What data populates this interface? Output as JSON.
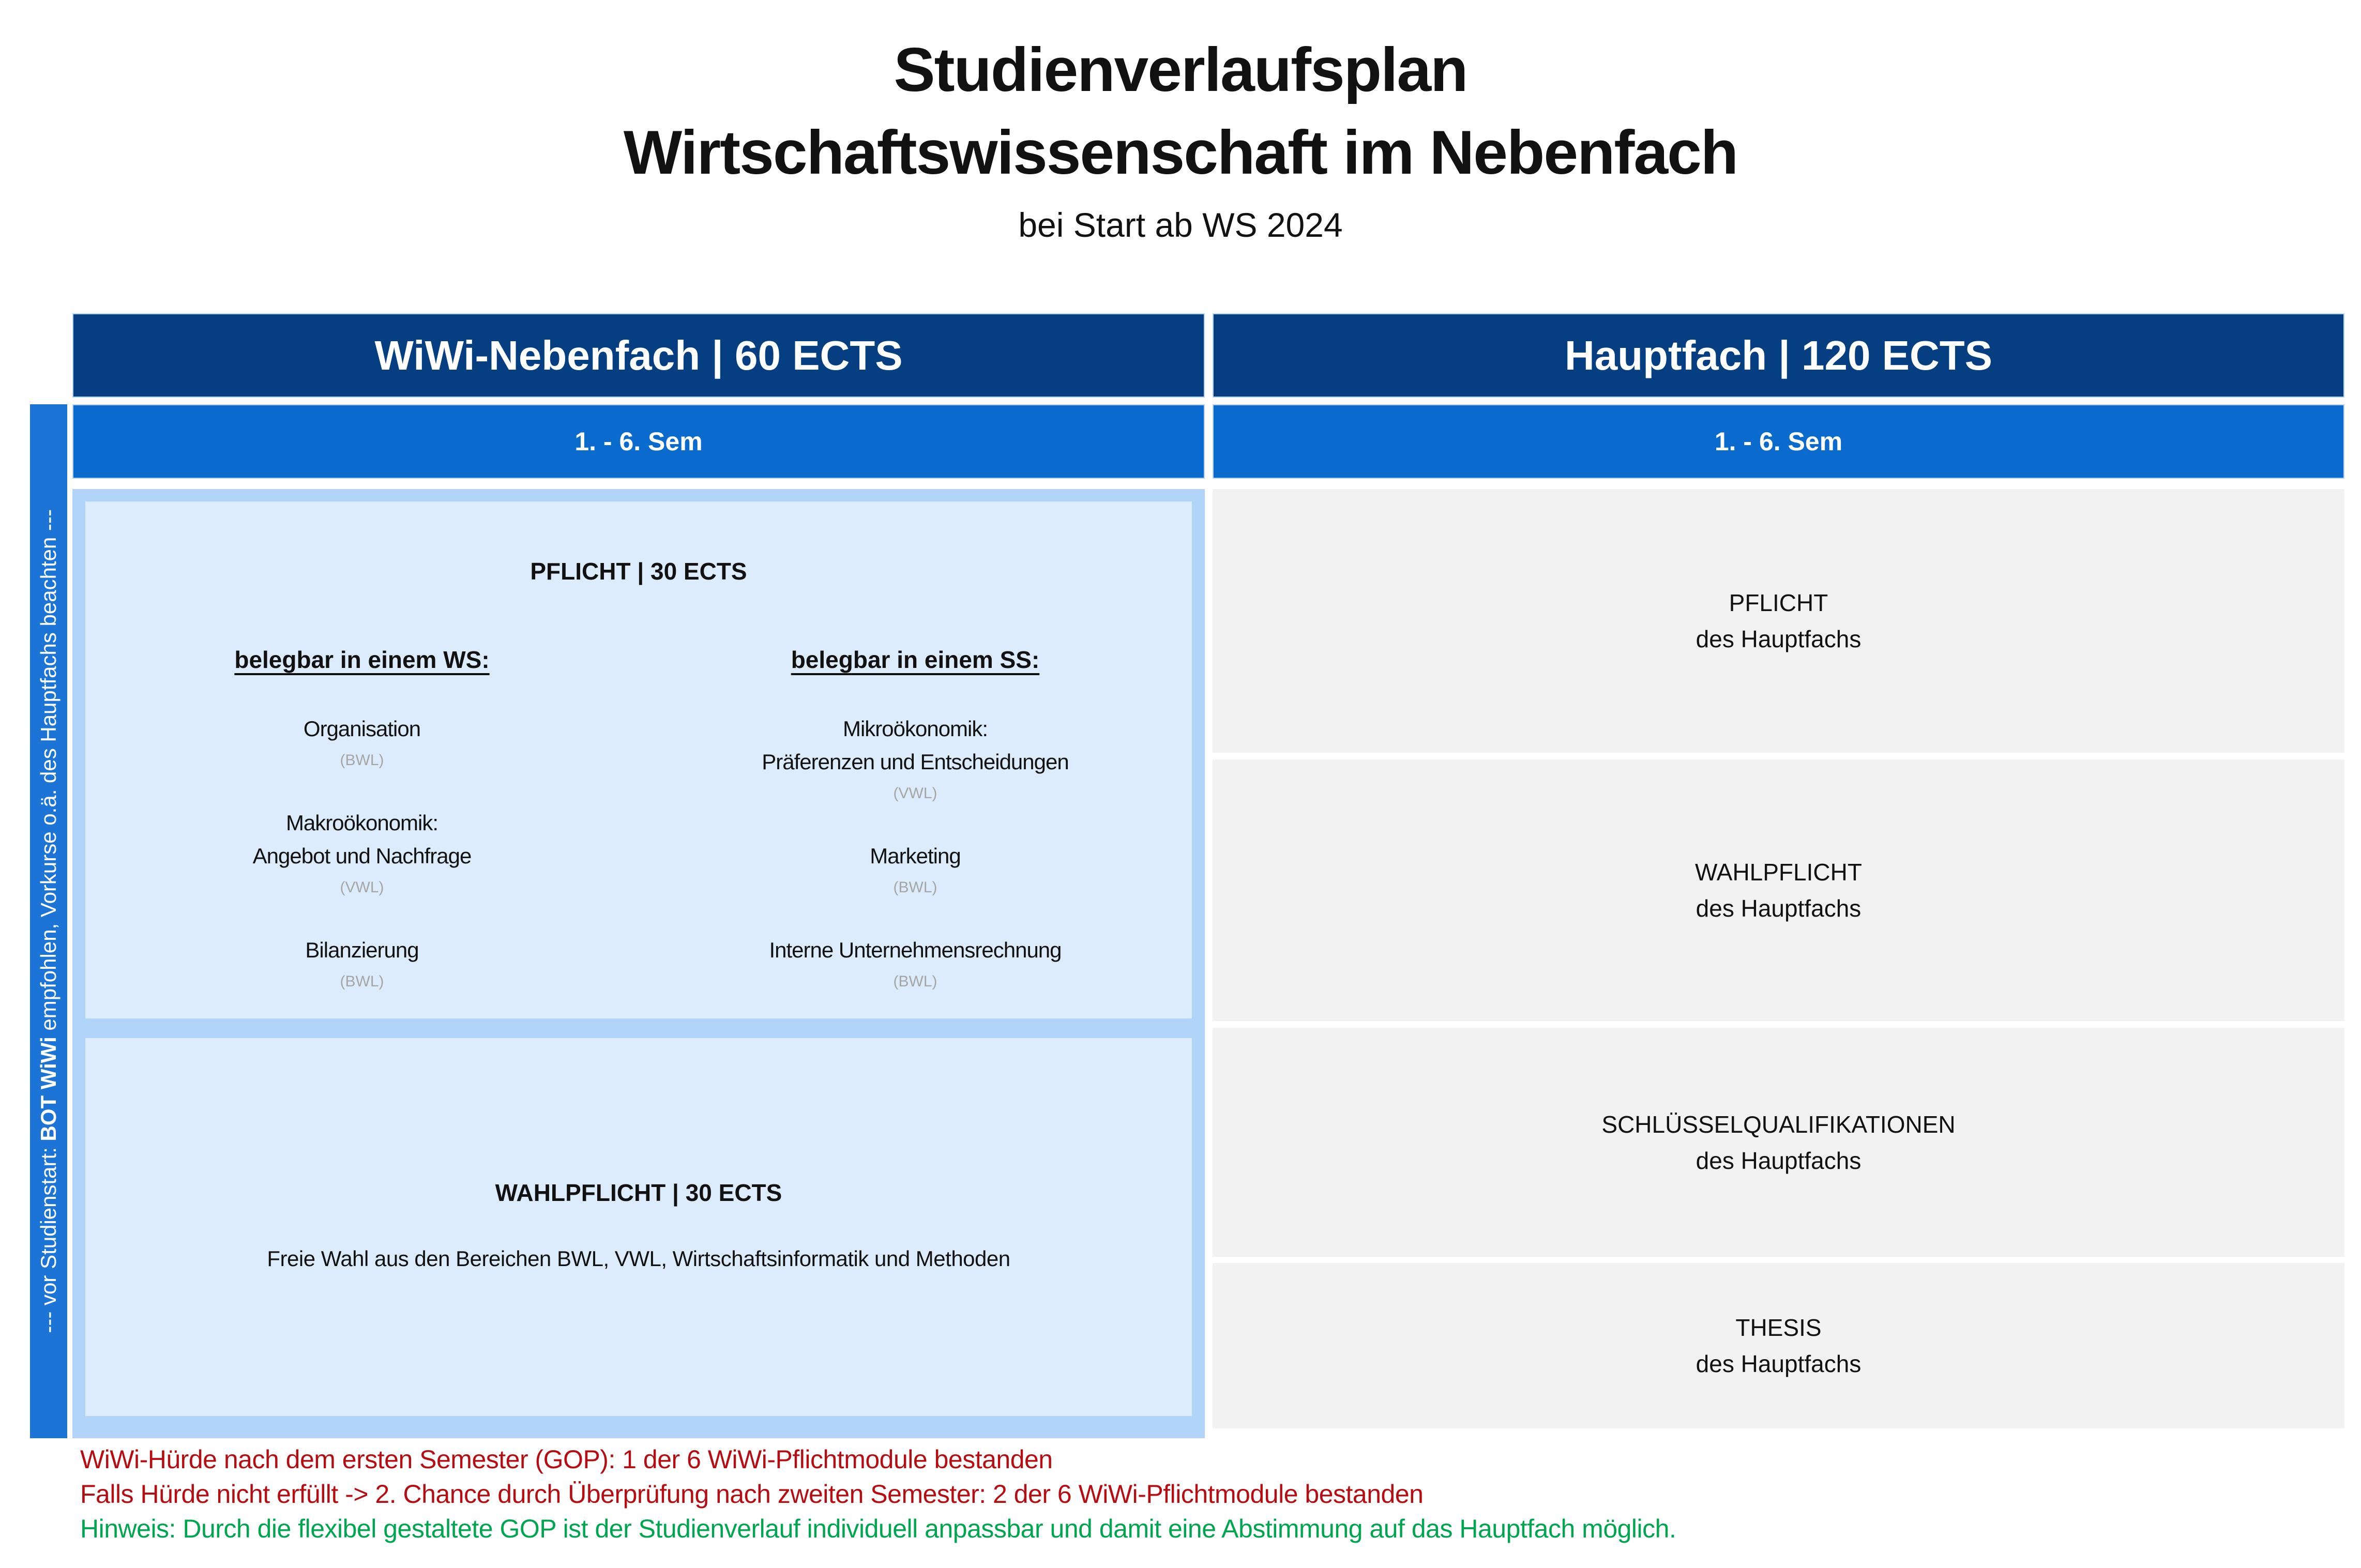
{
  "page": {
    "title_line1": "Studienverlaufsplan",
    "title_line2": "Wirtschaftswissenschaft im Nebenfach",
    "subtitle": "bei Start ab WS 2024"
  },
  "colors": {
    "dark_blue_header": "#053f82",
    "medium_blue": "#0a6ace",
    "strip_blue": "#1b74d6",
    "panel_light_blue": "#b0d5f8",
    "inner_box_pale_blue": "#ddecfd",
    "hauptfach_gray": "#f2f2f2",
    "tag_gray": "#a6a6a6",
    "note_red": "#b50d12",
    "note_green": "#00a550"
  },
  "nebenfach": {
    "header": "WiWi-Nebenfach | 60 ECTS",
    "semester": "1. - 6. Sem",
    "pflicht_box": {
      "title": "PFLICHT | 30 ECTS",
      "ws": {
        "heading": "belegbar in einem WS:",
        "modules": [
          {
            "name": "Organisation",
            "tag": "(BWL)"
          },
          {
            "name": "Makroökonomik:\nAngebot und Nachfrage",
            "tag": "(VWL)"
          },
          {
            "name": "Bilanzierung",
            "tag": "(BWL)"
          }
        ]
      },
      "ss": {
        "heading": "belegbar in einem SS:",
        "modules": [
          {
            "name": "Mikroökonomik:\nPräferenzen und Entscheidungen",
            "tag": "(VWL)"
          },
          {
            "name": "Marketing",
            "tag": "(BWL)"
          },
          {
            "name": "Interne Unternehmensrechnung",
            "tag": "(BWL)"
          }
        ]
      }
    },
    "wahlpflicht_box": {
      "title": "WAHLPFLICHT | 30 ECTS",
      "description": "Freie Wahl aus den Bereichen BWL, VWL, Wirtschaftsinformatik und Methoden"
    }
  },
  "hauptfach": {
    "header": "Hauptfach | 120 ECTS",
    "semester": "1. - 6. Sem",
    "boxes": [
      {
        "label": "PFLICHT\ndes Hauptfachs"
      },
      {
        "label": "WAHLPFLICHT\ndes Hauptfachs"
      },
      {
        "label": "SCHLÜSSELQUALIFIKATIONEN\ndes Hauptfachs"
      },
      {
        "label": "THESIS\ndes Hauptfachs"
      }
    ]
  },
  "sidebar": {
    "prefix": "--- vor Studienstart: ",
    "bold": "BOT WiWi",
    "suffix": " empfohlen, Vorkurse o.ä. des Hauptfachs beachten ---"
  },
  "footnotes": [
    {
      "text": "WiWi-Hürde nach dem ersten Semester (GOP): 1 der 6 WiWi-Pflichtmodule bestanden",
      "color": "#b50d12"
    },
    {
      "text": "Falls Hürde nicht erfüllt -> 2. Chance durch Überprüfung nach zweiten Semester: 2 der 6 WiWi-Pflichtmodule bestanden",
      "color": "#b50d12"
    },
    {
      "text": "Hinweis: Durch die flexibel gestaltete GOP ist der Studienverlauf individuell anpassbar und damit eine Abstimmung auf das Hauptfach möglich.",
      "color": "#00a550"
    }
  ]
}
